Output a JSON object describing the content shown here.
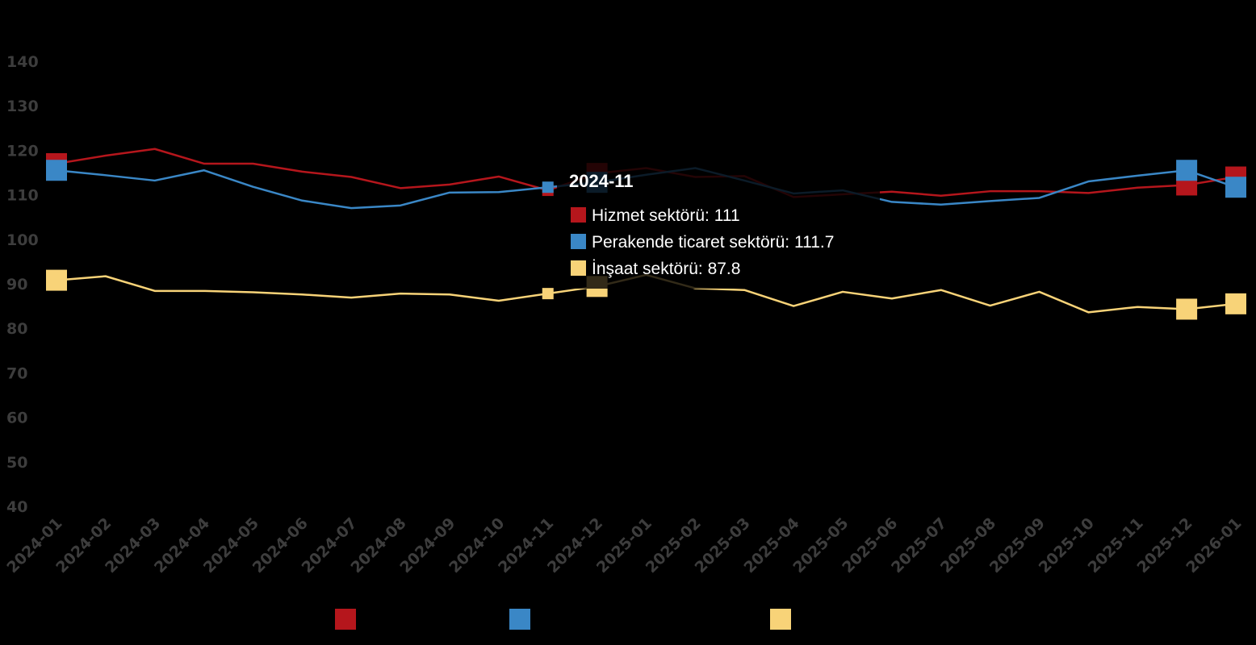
{
  "chart_data": {
    "type": "line",
    "x": [
      "2024-01",
      "2024-02",
      "2024-03",
      "2024-04",
      "2024-05",
      "2024-06",
      "2024-07",
      "2024-08",
      "2024-09",
      "2024-10",
      "2024-11",
      "2024-12",
      "2025-01",
      "2025-02",
      "2025-03",
      "2025-04",
      "2025-05",
      "2025-06",
      "2025-07",
      "2025-08",
      "2025-09",
      "2025-10",
      "2025-11",
      "2025-12",
      "2026-01"
    ],
    "ylim": [
      35,
      145
    ],
    "yticks": [
      40,
      50,
      60,
      70,
      80,
      90,
      100,
      110,
      120,
      130,
      140
    ],
    "series": [
      {
        "name": "Hizmet sektörü",
        "color": "#b5161c",
        "values": [
          117,
          118.8,
          120.3,
          117,
          117,
          115.2,
          114,
          111.5,
          112.3,
          114.1,
          111,
          114.8,
          116,
          114,
          114.2,
          109.5,
          110.1,
          110.7,
          109.8,
          110.8,
          110.8,
          110.4,
          111.6,
          112.2,
          114
        ]
      },
      {
        "name": "Perakende ticaret sektörü",
        "color": "#3a87c6",
        "values": [
          115.5,
          114.4,
          113.2,
          115.5,
          111.8,
          108.7,
          107,
          107.6,
          110.5,
          110.6,
          111.7,
          112.8,
          114.5,
          116,
          113.2,
          110.3,
          111,
          108.4,
          107.8,
          108.6,
          109.3,
          113,
          114.3,
          115.5,
          111.7
        ]
      },
      {
        "name": "İnşaat sektörü",
        "color": "#f8d378",
        "values": [
          90.8,
          91.7,
          88.4,
          88.4,
          88.1,
          87.6,
          86.9,
          87.8,
          87.6,
          86.2,
          87.8,
          89.4,
          92,
          89,
          88.6,
          85,
          88.2,
          86.7,
          88.6,
          85.1,
          88.2,
          83.6,
          84.8,
          84.3,
          85.5
        ]
      }
    ],
    "highlight_markers": [
      0,
      11,
      23,
      24
    ],
    "tooltip": {
      "title": "2024-11",
      "lines": [
        "Hizmet sektörü: 111",
        "Perakende ticaret sektörü: 111.7",
        "İnşaat sektörü: 87.8"
      ]
    },
    "legend_position": "bottom",
    "grid": false
  }
}
